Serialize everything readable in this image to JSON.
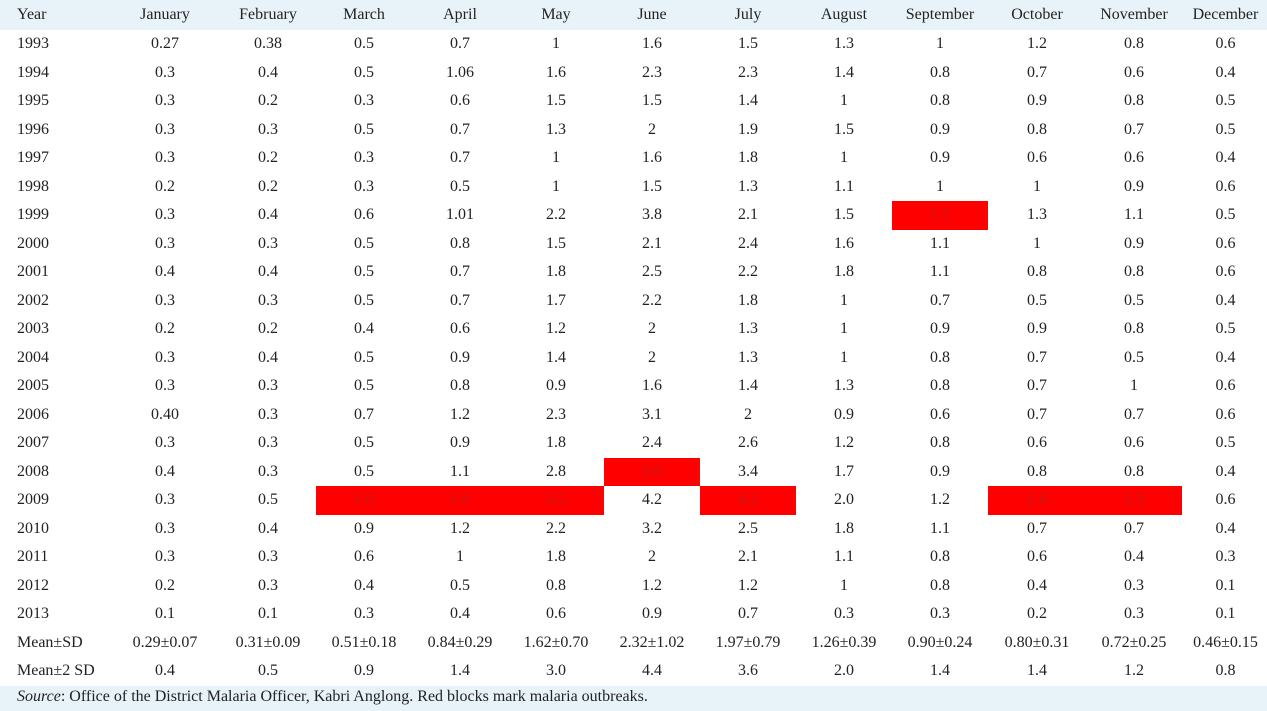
{
  "table": {
    "columns": [
      "Year",
      "January",
      "February",
      "March",
      "April",
      "May",
      "June",
      "July",
      "August",
      "September",
      "October",
      "November",
      "December"
    ],
    "rows": [
      [
        "1993",
        "0.27",
        "0.38",
        "0.5",
        "0.7",
        "1",
        "1.6",
        "1.5",
        "1.3",
        "1",
        "1.2",
        "0.8",
        "0.6"
      ],
      [
        "1994",
        "0.3",
        "0.4",
        "0.5",
        "1.06",
        "1.6",
        "2.3",
        "2.3",
        "1.4",
        "0.8",
        "0.7",
        "0.6",
        "0.4"
      ],
      [
        "1995",
        "0.3",
        "0.2",
        "0.3",
        "0.6",
        "1.5",
        "1.5",
        "1.4",
        "1",
        "0.8",
        "0.9",
        "0.8",
        "0.5"
      ],
      [
        "1996",
        "0.3",
        "0.3",
        "0.5",
        "0.7",
        "1.3",
        "2",
        "1.9",
        "1.5",
        "0.9",
        "0.8",
        "0.7",
        "0.5"
      ],
      [
        "1997",
        "0.3",
        "0.2",
        "0.3",
        "0.7",
        "1",
        "1.6",
        "1.8",
        "1",
        "0.9",
        "0.6",
        "0.6",
        "0.4"
      ],
      [
        "1998",
        "0.2",
        "0.2",
        "0.3",
        "0.5",
        "1",
        "1.5",
        "1.3",
        "1.1",
        "1",
        "1",
        "0.9",
        "0.6"
      ],
      [
        "1999",
        "0.3",
        "0.4",
        "0.6",
        "1.01",
        "2.2",
        "3.8",
        "2.1",
        "1.5",
        "1.5",
        "1.3",
        "1.1",
        "0.5"
      ],
      [
        "2000",
        "0.3",
        "0.3",
        "0.5",
        "0.8",
        "1.5",
        "2.1",
        "2.4",
        "1.6",
        "1.1",
        "1",
        "0.9",
        "0.6"
      ],
      [
        "2001",
        "0.4",
        "0.4",
        "0.5",
        "0.7",
        "1.8",
        "2.5",
        "2.2",
        "1.8",
        "1.1",
        "0.8",
        "0.8",
        "0.6"
      ],
      [
        "2002",
        "0.3",
        "0.3",
        "0.5",
        "0.7",
        "1.7",
        "2.2",
        "1.8",
        "1",
        "0.7",
        "0.5",
        "0.5",
        "0.4"
      ],
      [
        "2003",
        "0.2",
        "0.2",
        "0.4",
        "0.6",
        "1.2",
        "2",
        "1.3",
        "1",
        "0.9",
        "0.9",
        "0.8",
        "0.5"
      ],
      [
        "2004",
        "0.3",
        "0.4",
        "0.5",
        "0.9",
        "1.4",
        "2",
        "1.3",
        "1",
        "0.8",
        "0.7",
        "0.5",
        "0.4"
      ],
      [
        "2005",
        "0.3",
        "0.3",
        "0.5",
        "0.8",
        "0.9",
        "1.6",
        "1.4",
        "1.3",
        "0.8",
        "0.7",
        "1",
        "0.6"
      ],
      [
        "2006",
        "0.40",
        "0.3",
        "0.7",
        "1.2",
        "2.3",
        "3.1",
        "2",
        "0.9",
        "0.6",
        "0.7",
        "0.7",
        "0.6"
      ],
      [
        "2007",
        "0.3",
        "0.3",
        "0.5",
        "0.9",
        "1.8",
        "2.4",
        "2.6",
        "1.2",
        "0.8",
        "0.6",
        "0.6",
        "0.5"
      ],
      [
        "2008",
        "0.4",
        "0.3",
        "0.5",
        "1.1",
        "2.8",
        "5.0",
        "3.4",
        "1.7",
        "0.9",
        "0.8",
        "0.8",
        "0.4"
      ],
      [
        "2009",
        "0.3",
        "0.5",
        "1.0",
        "1.6",
        "3.5",
        "4.2",
        "4.2",
        "2.0",
        "1.2",
        "1.6",
        "1.3",
        "0.6"
      ],
      [
        "2010",
        "0.3",
        "0.4",
        "0.9",
        "1.2",
        "2.2",
        "3.2",
        "2.5",
        "1.8",
        "1.1",
        "0.7",
        "0.7",
        "0.4"
      ],
      [
        "2011",
        "0.3",
        "0.3",
        "0.6",
        "1",
        "1.8",
        "2",
        "2.1",
        "1.1",
        "0.8",
        "0.6",
        "0.4",
        "0.3"
      ],
      [
        "2012",
        "0.2",
        "0.3",
        "0.4",
        "0.5",
        "0.8",
        "1.2",
        "1.2",
        "1",
        "0.8",
        "0.4",
        "0.3",
        "0.1"
      ],
      [
        "2013",
        "0.1",
        "0.1",
        "0.3",
        "0.4",
        "0.6",
        "0.9",
        "0.7",
        "0.3",
        "0.3",
        "0.2",
        "0.3",
        "0.1"
      ]
    ],
    "summary_rows": [
      [
        "Mean±SD",
        "0.29±0.07",
        "0.31±0.09",
        "0.51±0.18",
        "0.84±0.29",
        "1.62±0.70",
        "2.32±1.02",
        "1.97±0.79",
        "1.26±0.39",
        "0.90±0.24",
        "0.80±0.31",
        "0.72±0.25",
        "0.46±0.15"
      ],
      [
        "Mean±2 SD",
        "0.4",
        "0.5",
        "0.9",
        "1.4",
        "3.0",
        "4.4",
        "3.6",
        "2.0",
        "1.4",
        "1.4",
        "1.2",
        "0.8"
      ]
    ],
    "highlighted_cells": [
      {
        "year": "1999",
        "column": "September"
      },
      {
        "year": "2008",
        "column": "June"
      },
      {
        "year": "2009",
        "column": "March"
      },
      {
        "year": "2009",
        "column": "April"
      },
      {
        "year": "2009",
        "column": "May"
      },
      {
        "year": "2009",
        "column": "July"
      },
      {
        "year": "2009",
        "column": "October"
      },
      {
        "year": "2009",
        "column": "November"
      }
    ],
    "highlight_color": "#ff0000"
  },
  "footer": {
    "source_label": "Source",
    "source_text": ": Office of the District Malaria Officer, Kabri Anglong. Red blocks mark malaria outbreaks."
  }
}
